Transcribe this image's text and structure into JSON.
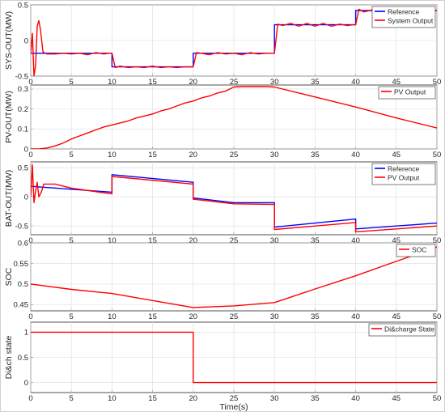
{
  "chart_data": [
    {
      "type": "line",
      "ylabel": "SYS-OUT(MW)",
      "xlim": [
        0,
        50
      ],
      "ylim": [
        -0.5,
        0.5
      ],
      "xticks": [
        "0",
        "5",
        "10",
        "15",
        "20",
        "25",
        "30",
        "35",
        "40",
        "45",
        "50"
      ],
      "yticks": [
        "-0.5",
        "0",
        "0.5"
      ],
      "grid": true,
      "legend_position": "top-right",
      "series": [
        {
          "name": "Reference",
          "color": "#0000ff",
          "x": [
            0,
            10,
            10,
            20,
            20,
            30,
            30,
            40,
            40,
            50
          ],
          "y": [
            -0.18,
            -0.18,
            -0.37,
            -0.37,
            -0.18,
            -0.18,
            0.22,
            0.22,
            0.42,
            0.42
          ]
        },
        {
          "name": "System Output",
          "color": "#ff0000",
          "x": [
            0,
            0.2,
            0.4,
            0.6,
            0.8,
            1.0,
            1.2,
            1.5,
            2,
            3,
            4,
            5,
            6,
            7,
            8,
            9,
            9.6,
            10,
            10.4,
            11,
            12,
            13,
            14,
            15,
            16,
            17,
            18,
            19,
            19.6,
            20,
            20.4,
            21,
            22,
            23,
            24,
            25,
            26,
            27,
            28,
            29,
            29.6,
            30,
            30.4,
            31,
            32,
            33,
            34,
            35,
            36,
            37,
            38,
            39,
            39.6,
            40,
            40.4,
            41,
            42,
            43,
            44,
            45,
            46,
            47,
            48,
            49,
            50
          ],
          "y": [
            -0.18,
            0.1,
            -0.5,
            -0.35,
            0.2,
            0.28,
            0.15,
            -0.16,
            -0.19,
            -0.19,
            -0.18,
            -0.19,
            -0.18,
            -0.2,
            -0.17,
            -0.19,
            -0.18,
            -0.18,
            -0.38,
            -0.36,
            -0.38,
            -0.37,
            -0.38,
            -0.36,
            -0.38,
            -0.37,
            -0.38,
            -0.37,
            -0.37,
            -0.37,
            -0.17,
            -0.18,
            -0.2,
            -0.17,
            -0.19,
            -0.18,
            -0.2,
            -0.17,
            -0.19,
            -0.18,
            -0.18,
            -0.18,
            0.23,
            0.21,
            0.24,
            0.2,
            0.24,
            0.2,
            0.24,
            0.2,
            0.23,
            0.21,
            0.22,
            0.22,
            0.44,
            0.4,
            0.43,
            0.39,
            0.44,
            0.4,
            0.43,
            0.41,
            0.42,
            0.41,
            0.42
          ]
        }
      ]
    },
    {
      "type": "line",
      "ylabel": "PV-OUT(MW)",
      "xlim": [
        0,
        50
      ],
      "ylim": [
        0,
        0.32
      ],
      "xticks": [
        "0",
        "5",
        "10",
        "15",
        "20",
        "25",
        "30",
        "35",
        "40",
        "45",
        "50"
      ],
      "yticks": [
        "0",
        "0.1",
        "0.2",
        "0.3"
      ],
      "grid": true,
      "legend_position": "top-right",
      "series": [
        {
          "name": "PV Output",
          "color": "#ff0000",
          "x": [
            0,
            1,
            2,
            3,
            4,
            5,
            6,
            7,
            8,
            9,
            10,
            11,
            12,
            13,
            14,
            15,
            16,
            17,
            18,
            19,
            20,
            21,
            22,
            23,
            24,
            25,
            26,
            27,
            28,
            29,
            30,
            35,
            40,
            45,
            50
          ],
          "y": [
            0,
            0,
            0.005,
            0.015,
            0.03,
            0.05,
            0.065,
            0.08,
            0.095,
            0.11,
            0.12,
            0.13,
            0.14,
            0.155,
            0.165,
            0.175,
            0.19,
            0.2,
            0.215,
            0.23,
            0.24,
            0.255,
            0.265,
            0.28,
            0.29,
            0.31,
            0.312,
            0.312,
            0.312,
            0.312,
            0.31,
            0.26,
            0.21,
            0.155,
            0.105
          ]
        }
      ]
    },
    {
      "type": "line",
      "ylabel": "BAT-OUT(MW)",
      "xlim": [
        0,
        50
      ],
      "ylim": [
        -0.65,
        0.6
      ],
      "xticks": [
        "0",
        "5",
        "10",
        "15",
        "20",
        "25",
        "30",
        "35",
        "40",
        "45",
        "50"
      ],
      "yticks": [
        "-0.5",
        "0",
        "0.5"
      ],
      "grid": true,
      "legend_position": "top-right",
      "series": [
        {
          "name": "Reference",
          "color": "#0000ff",
          "x": [
            0,
            10,
            10,
            20,
            20,
            25,
            30,
            30,
            40,
            40,
            50
          ],
          "y": [
            0.18,
            0.08,
            0.38,
            0.25,
            -0.02,
            -0.1,
            -0.1,
            -0.52,
            -0.38,
            -0.55,
            -0.45
          ]
        },
        {
          "name": "PV Output",
          "color": "#ff0000",
          "x": [
            0,
            0.2,
            0.4,
            0.6,
            0.8,
            1.0,
            1.3,
            1.6,
            2,
            3,
            5,
            10,
            10,
            20,
            20,
            25,
            30,
            30,
            40,
            40,
            50
          ],
          "y": [
            0.0,
            0.55,
            -0.1,
            0.1,
            0.25,
            0.0,
            0.08,
            0.22,
            0.22,
            0.22,
            0.15,
            0.05,
            0.35,
            0.22,
            -0.04,
            -0.12,
            -0.13,
            -0.56,
            -0.44,
            -0.6,
            -0.5
          ]
        }
      ]
    },
    {
      "type": "line",
      "ylabel": "SOC",
      "xlim": [
        0,
        50
      ],
      "ylim": [
        0.435,
        0.6
      ],
      "xticks": [
        "0",
        "5",
        "10",
        "15",
        "20",
        "25",
        "30",
        "35",
        "40",
        "45",
        "50"
      ],
      "yticks": [
        "0.45",
        "0.5",
        "0.55",
        "0.6"
      ],
      "grid": true,
      "legend_position": "top-right",
      "series": [
        {
          "name": "SOC",
          "color": "#ff0000",
          "x": [
            0,
            5,
            10,
            15,
            20,
            25,
            30,
            35,
            40,
            45,
            50
          ],
          "y": [
            0.5,
            0.487,
            0.477,
            0.46,
            0.443,
            0.447,
            0.455,
            0.488,
            0.52,
            0.555,
            0.59
          ]
        }
      ]
    },
    {
      "type": "line",
      "ylabel": "Di&ch state",
      "xlabel": "Time(s)",
      "xlim": [
        0,
        50
      ],
      "ylim": [
        -0.2,
        1.2
      ],
      "xticks": [
        "0",
        "5",
        "10",
        "15",
        "20",
        "25",
        "30",
        "35",
        "40",
        "45",
        "50"
      ],
      "yticks": [
        "0",
        "0.5",
        "1"
      ],
      "grid": true,
      "legend_position": "top-right",
      "series": [
        {
          "name": "Di&charge State",
          "color": "#ff0000",
          "x": [
            0,
            20,
            20,
            50
          ],
          "y": [
            1,
            1,
            0,
            0
          ]
        }
      ]
    }
  ]
}
